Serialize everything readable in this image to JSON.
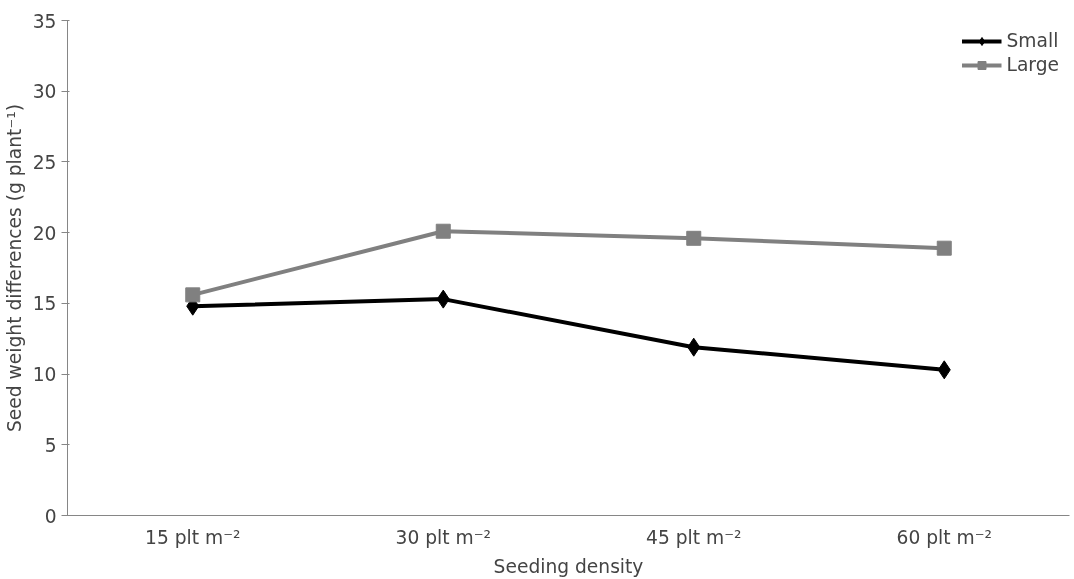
{
  "chart_data": {
    "type": "line",
    "xlabel": "Seeding density",
    "ylabel": "Seed weight differences (g plant⁻¹)",
    "categories": [
      "15 plt m⁻²",
      "30 plt m⁻²",
      "45 plt m⁻²",
      "60 plt m⁻²"
    ],
    "series": [
      {
        "name": "Small",
        "color": "#000000",
        "marker": "diamond",
        "values": [
          14.8,
          15.3,
          11.9,
          10.3
        ]
      },
      {
        "name": "Large",
        "color": "#808080",
        "marker": "square",
        "values": [
          15.6,
          20.1,
          19.6,
          18.9
        ]
      }
    ],
    "ylim": [
      0,
      35
    ],
    "yticks": [
      0,
      5,
      10,
      15,
      20,
      25,
      30,
      35
    ],
    "grid": false,
    "legend": "top right",
    "line_style": "solid"
  }
}
